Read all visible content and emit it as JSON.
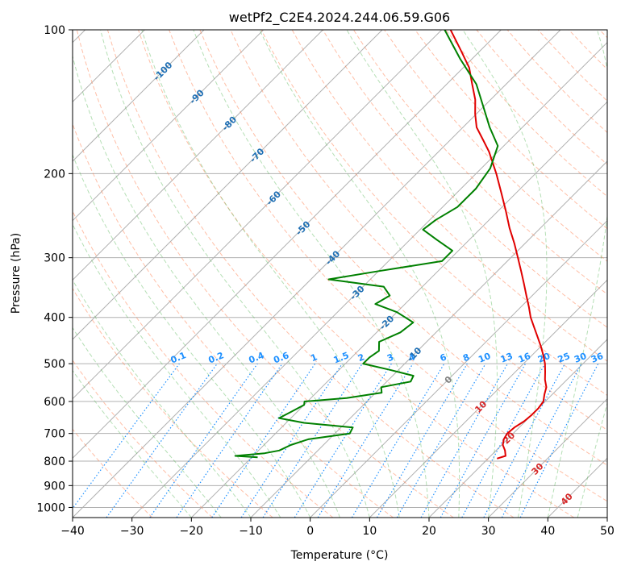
{
  "chart_data": {
    "type": "line",
    "title": "wetPf2_C2E4.2024.244.06.59.G06",
    "xlabel": "Temperature (°C)",
    "ylabel": "Pressure (hPa)",
    "xlim": [
      -40,
      50
    ],
    "ylim": [
      1050,
      100
    ],
    "yscale": "log",
    "grid": true,
    "x_ticks": [
      "−40",
      "−30",
      "−20",
      "−10",
      "0",
      "10",
      "20",
      "30",
      "40",
      "50"
    ],
    "y_ticks": [
      "100",
      "200",
      "300",
      "400",
      "500",
      "600",
      "700",
      "800",
      "900",
      "1000"
    ],
    "skew_angle_deg": 45,
    "series": [
      {
        "color": "#e00000",
        "points": [
          {
            "p": 790,
            "t": 21.5
          },
          {
            "p": 780,
            "t": 22.5
          },
          {
            "p": 760,
            "t": 21.5
          },
          {
            "p": 740,
            "t": 20.2
          },
          {
            "p": 720,
            "t": 19.4
          },
          {
            "p": 700,
            "t": 19.0
          },
          {
            "p": 680,
            "t": 19.2
          },
          {
            "p": 660,
            "t": 19.8
          },
          {
            "p": 640,
            "t": 20.0
          },
          {
            "p": 620,
            "t": 20.0
          },
          {
            "p": 600,
            "t": 19.7
          },
          {
            "p": 580,
            "t": 18.7
          },
          {
            "p": 560,
            "t": 17.8
          },
          {
            "p": 540,
            "t": 16.3
          },
          {
            "p": 520,
            "t": 15.0
          },
          {
            "p": 500,
            "t": 13.6
          },
          {
            "p": 480,
            "t": 11.9
          },
          {
            "p": 460,
            "t": 10.0
          },
          {
            "p": 440,
            "t": 7.9
          },
          {
            "p": 420,
            "t": 5.7
          },
          {
            "p": 400,
            "t": 3.4
          },
          {
            "p": 380,
            "t": 1.3
          },
          {
            "p": 360,
            "t": -1.0
          },
          {
            "p": 340,
            "t": -3.4
          },
          {
            "p": 320,
            "t": -6.0
          },
          {
            "p": 300,
            "t": -8.8
          },
          {
            "p": 280,
            "t": -11.8
          },
          {
            "p": 260,
            "t": -15.2
          },
          {
            "p": 240,
            "t": -18.6
          },
          {
            "p": 220,
            "t": -22.4
          },
          {
            "p": 200,
            "t": -26.6
          },
          {
            "p": 180,
            "t": -31.5
          },
          {
            "p": 170,
            "t": -34.5
          },
          {
            "p": 160,
            "t": -37.7
          },
          {
            "p": 150,
            "t": -40.2
          },
          {
            "p": 140,
            "t": -42.6
          },
          {
            "p": 130,
            "t": -45.7
          },
          {
            "p": 120,
            "t": -49.0
          },
          {
            "p": 110,
            "t": -53.5
          },
          {
            "p": 100,
            "t": -58.5
          }
        ]
      },
      {
        "color": "#008000",
        "points": [
          {
            "p": 785,
            "t": -19.0
          },
          {
            "p": 780,
            "t": -23.0
          },
          {
            "p": 770,
            "t": -18.5
          },
          {
            "p": 760,
            "t": -16.5
          },
          {
            "p": 740,
            "t": -15.5
          },
          {
            "p": 720,
            "t": -13.5
          },
          {
            "p": 700,
            "t": -7.5
          },
          {
            "p": 680,
            "t": -8.0
          },
          {
            "p": 665,
            "t": -17.0
          },
          {
            "p": 650,
            "t": -22.0
          },
          {
            "p": 630,
            "t": -21.0
          },
          {
            "p": 610,
            "t": -20.0
          },
          {
            "p": 600,
            "t": -20.5
          },
          {
            "p": 590,
            "t": -14.0
          },
          {
            "p": 575,
            "t": -9.0
          },
          {
            "p": 560,
            "t": -10.0
          },
          {
            "p": 545,
            "t": -6.0
          },
          {
            "p": 530,
            "t": -6.5
          },
          {
            "p": 515,
            "t": -11.5
          },
          {
            "p": 500,
            "t": -17.0
          },
          {
            "p": 485,
            "t": -17.0
          },
          {
            "p": 470,
            "t": -16.5
          },
          {
            "p": 450,
            "t": -18.0
          },
          {
            "p": 430,
            "t": -16.0
          },
          {
            "p": 410,
            "t": -15.5
          },
          {
            "p": 390,
            "t": -20.0
          },
          {
            "p": 375,
            "t": -25.0
          },
          {
            "p": 360,
            "t": -24.0
          },
          {
            "p": 345,
            "t": -26.5
          },
          {
            "p": 333,
            "t": -37.0
          },
          {
            "p": 320,
            "t": -30.0
          },
          {
            "p": 305,
            "t": -21.0
          },
          {
            "p": 290,
            "t": -21.0
          },
          {
            "p": 275,
            "t": -25.5
          },
          {
            "p": 262,
            "t": -29.5
          },
          {
            "p": 250,
            "t": -29.0
          },
          {
            "p": 235,
            "t": -27.5
          },
          {
            "p": 215,
            "t": -27.5
          },
          {
            "p": 195,
            "t": -28.5
          },
          {
            "p": 175,
            "t": -31.0
          },
          {
            "p": 160,
            "t": -35.5
          },
          {
            "p": 145,
            "t": -40.0
          },
          {
            "p": 130,
            "t": -45.0
          },
          {
            "p": 115,
            "t": -52.0
          },
          {
            "p": 100,
            "t": -59.5
          }
        ]
      }
    ],
    "dry_adiabats_c": [
      -30,
      -20,
      -10,
      0,
      10,
      20,
      30,
      40,
      50,
      60,
      70,
      80,
      90,
      100,
      110,
      120,
      130,
      140,
      150,
      160,
      170,
      180,
      190,
      200
    ],
    "moist_adiabats_c": [
      -20,
      -15,
      -10,
      -5,
      0,
      5,
      10,
      15,
      20,
      25,
      30,
      35,
      40,
      45,
      50
    ],
    "mixing_ratios": [
      {
        "w": 0.1,
        "label": "0.1"
      },
      {
        "w": 0.2,
        "label": "0.2"
      },
      {
        "w": 0.4,
        "label": "0.4"
      },
      {
        "w": 0.6,
        "label": "0.6"
      },
      {
        "w": 1,
        "label": "1"
      },
      {
        "w": 1.5,
        "label": "1.5"
      },
      {
        "w": 2,
        "label": "2"
      },
      {
        "w": 3,
        "label": "3"
      },
      {
        "w": 4,
        "label": "4"
      },
      {
        "w": 6,
        "label": "6"
      },
      {
        "w": 8,
        "label": "8"
      },
      {
        "w": 10,
        "label": "10"
      },
      {
        "w": 13,
        "label": "13"
      },
      {
        "w": 16,
        "label": "16"
      },
      {
        "w": 20,
        "label": "20"
      },
      {
        "w": 25,
        "label": "25"
      },
      {
        "w": 30,
        "label": "30"
      },
      {
        "w": 36,
        "label": "36"
      }
    ],
    "isotherm_labels": [
      {
        "t": -100,
        "p": 122,
        "label": "-100",
        "color": "#1f6fb4"
      },
      {
        "t": -90,
        "p": 138,
        "label": "-90",
        "color": "#1f6fb4"
      },
      {
        "t": -80,
        "p": 157,
        "label": "-80",
        "color": "#1f6fb4"
      },
      {
        "t": -70,
        "p": 183,
        "label": "-70",
        "color": "#1f6fb4"
      },
      {
        "t": -60,
        "p": 225,
        "label": "-60",
        "color": "#1f6fb4"
      },
      {
        "t": -50,
        "p": 260,
        "label": "-50",
        "color": "#1f6fb4"
      },
      {
        "t": -40,
        "p": 300,
        "label": "-40",
        "color": "#1f6fb4"
      },
      {
        "t": -30,
        "p": 355,
        "label": "-30",
        "color": "#1f6fb4"
      },
      {
        "t": -20,
        "p": 410,
        "label": "-20",
        "color": "#1f6fb4"
      },
      {
        "t": -10,
        "p": 478,
        "label": "-10",
        "color": "#1f6fb4"
      },
      {
        "t": 0,
        "p": 540,
        "label": "0",
        "color": "#808080"
      },
      {
        "t": 10,
        "p": 615,
        "label": "10",
        "color": "#d62728"
      },
      {
        "t": 20,
        "p": 715,
        "label": "20",
        "color": "#d62728"
      },
      {
        "t": 30,
        "p": 830,
        "label": "30",
        "color": "#d62728"
      },
      {
        "t": 40,
        "p": 960,
        "label": "40",
        "color": "#d62728"
      }
    ],
    "colors": {
      "temperature": "#e00000",
      "dewpoint": "#008000",
      "isotherm_grid": "#b0b0b0",
      "dry_adiabat": "#ff7f50",
      "moist_adiabat": "#5cb85c",
      "mixing_ratio": "#1e90ff",
      "cold_isotherm_label": "#1f6fb4",
      "warm_isotherm_label": "#d62728"
    }
  }
}
